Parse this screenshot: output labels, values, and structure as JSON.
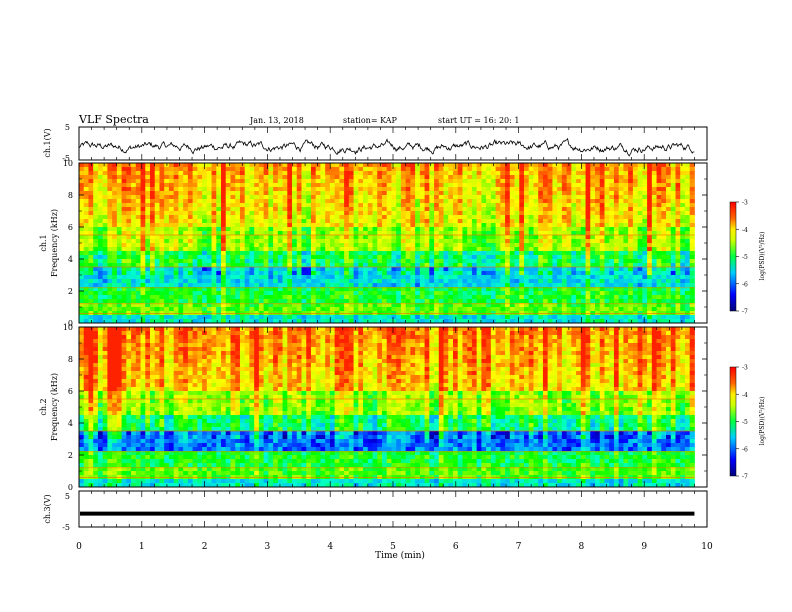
{
  "header": {
    "title": "VLF Spectra",
    "date": "Jan. 13, 2018",
    "station": "station= KAP",
    "start": "start  UT =   16: 20: 1"
  },
  "chart_data": [
    {
      "type": "line",
      "panel": "ch1-waveform",
      "ylabel": "ch.1(V)",
      "ylim": [
        -5,
        5
      ],
      "yticks": [
        "5",
        "-5"
      ],
      "xlim": [
        0,
        10
      ],
      "color": "#000000",
      "description_of_values": "noisy trace fluctuating about roughly -1 V between about -3 V and +2 V"
    },
    {
      "type": "heatmap",
      "panel": "ch1-spectrogram",
      "ylabel_line1": "ch.1",
      "ylabel_line2": "Frequency (kHz)",
      "ylim": [
        0,
        10
      ],
      "yticks": [
        "0",
        "2",
        "4",
        "6",
        "8",
        "10"
      ],
      "xlim": [
        0,
        10
      ],
      "colorbar": {
        "label": "log(PSD)(V²/Hz)",
        "range": [
          -7,
          -3
        ],
        "ticks": [
          "-3",
          "-4",
          "-5",
          "-6",
          "-7"
        ]
      }
    },
    {
      "type": "heatmap",
      "panel": "ch2-spectrogram",
      "ylabel_line1": "ch.2",
      "ylabel_line2": "Frequency (kHz)",
      "ylim": [
        0,
        10
      ],
      "yticks": [
        "0",
        "2",
        "4",
        "6",
        "8",
        "10"
      ],
      "xlim": [
        0,
        10
      ],
      "colorbar": {
        "label": "log(PSD)(V²/Hz)",
        "range": [
          -7,
          -3
        ],
        "ticks": [
          "-3",
          "-4",
          "-5",
          "-6",
          "-7"
        ]
      }
    },
    {
      "type": "line",
      "panel": "ch3-waveform",
      "ylabel": "ch.3(V)",
      "ylim": [
        -5,
        5
      ],
      "yticks": [
        "5",
        "-5"
      ],
      "xlim": [
        0,
        10
      ],
      "constant_value": -1.3,
      "color": "#000000"
    }
  ],
  "xaxis": {
    "label": "Time  (min)",
    "ticks": [
      "0",
      "1",
      "2",
      "3",
      "4",
      "5",
      "6",
      "7",
      "8",
      "9",
      "10"
    ],
    "data_end": 9.8
  },
  "colors": {
    "colormap": [
      "#00007a",
      "#0000ff",
      "#00aaff",
      "#00ffcc",
      "#00ff00",
      "#aaff00",
      "#ffff00",
      "#ff8800",
      "#ff2200"
    ],
    "line": "#000000",
    "background": "#ffffff"
  }
}
